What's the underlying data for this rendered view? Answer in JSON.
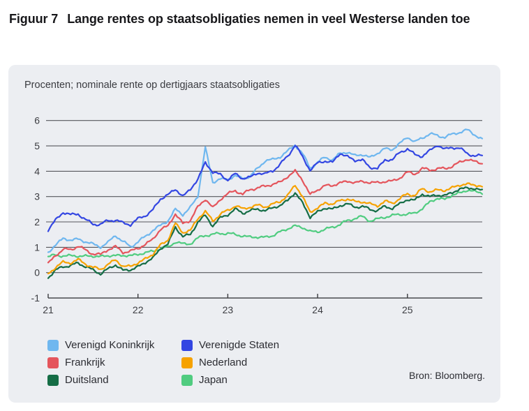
{
  "header": {
    "figure_label": "Figuur 7",
    "title": "Lange rentes op staatsobligaties nemen in veel Westerse landen toe"
  },
  "panel": {
    "subtitle": "Procenten; nominale rente op dertigjaars staatsobligaties",
    "source": "Bron: Bloomberg."
  },
  "chart_data": {
    "type": "line",
    "title": "Lange rentes op staatsobligaties nemen in veel Westerse landen toe",
    "subtitle": "Procenten; nominale rente op dertigjaars staatsobligaties",
    "ylabel": "Procenten",
    "x_unit": "jaar (maanddata jan 2021 t/m nov 2025)",
    "x_start": 21.0,
    "x_step": 0.08333,
    "xlim": [
      21,
      25.92
    ],
    "ylim": [
      -1,
      6
    ],
    "x_tick_values": [
      21,
      22,
      23,
      24,
      25
    ],
    "x_tick_labels": [
      "21",
      "22",
      "23",
      "24",
      "25"
    ],
    "y_tick_values": [
      6,
      5,
      4,
      3,
      2,
      1,
      0,
      -1
    ],
    "y_tick_labels": [
      "6",
      "5",
      "4",
      "3",
      "2",
      "1",
      "0",
      "-1"
    ],
    "y_gridline_values": [
      0,
      1,
      2,
      3,
      4,
      5,
      6
    ],
    "grid": "horizontal",
    "legend_position": "bottom-left",
    "background_color": "#eceef2",
    "gridline_color": "#56575c",
    "draw_order": [
      5,
      4,
      3,
      2,
      0,
      1
    ],
    "series": [
      {
        "name": "Verenigd Koninkrijk",
        "color": "#6fb7ef",
        "values": [
          0.78,
          1.1,
          1.35,
          1.28,
          1.32,
          1.22,
          1.12,
          1.02,
          1.18,
          1.48,
          1.22,
          1.02,
          1.22,
          1.42,
          1.68,
          1.85,
          2.05,
          2.5,
          2.28,
          2.58,
          3.0,
          4.95,
          3.55,
          3.7,
          3.68,
          3.82,
          3.72,
          3.8,
          4.12,
          4.42,
          4.45,
          4.58,
          4.78,
          5.05,
          4.68,
          4.12,
          4.35,
          4.55,
          4.45,
          4.7,
          4.75,
          4.62,
          4.65,
          4.55,
          4.7,
          4.9,
          4.85,
          5.1,
          5.35,
          5.15,
          5.32,
          5.48,
          5.4,
          5.35,
          5.45,
          5.55,
          5.62,
          5.45,
          5.25
        ]
      },
      {
        "name": "Verenigde Staten",
        "color": "#3346e2",
        "values": [
          1.68,
          2.08,
          2.38,
          2.28,
          2.32,
          2.08,
          1.92,
          1.9,
          2.05,
          2.08,
          1.95,
          1.9,
          2.12,
          2.25,
          2.48,
          2.9,
          3.08,
          3.28,
          3.02,
          3.28,
          3.68,
          4.35,
          3.95,
          3.88,
          3.65,
          3.9,
          3.72,
          3.75,
          3.95,
          3.88,
          4.02,
          4.28,
          4.58,
          5.05,
          4.55,
          4.05,
          4.32,
          4.4,
          4.35,
          4.7,
          4.58,
          4.42,
          4.45,
          4.15,
          4.1,
          4.45,
          4.45,
          4.75,
          4.88,
          4.65,
          4.6,
          4.8,
          5.05,
          4.85,
          4.95,
          4.9,
          4.7,
          4.6,
          4.62
        ]
      },
      {
        "name": "Frankrijk",
        "color": "#e4555c",
        "values": [
          0.35,
          0.68,
          0.92,
          0.9,
          1.05,
          0.88,
          0.75,
          0.7,
          0.92,
          1.02,
          0.8,
          0.85,
          0.95,
          1.12,
          1.32,
          1.7,
          1.85,
          2.3,
          1.95,
          2.05,
          2.6,
          2.9,
          2.55,
          2.9,
          3.1,
          3.25,
          3.08,
          3.28,
          3.35,
          3.4,
          3.5,
          3.55,
          3.8,
          4.0,
          3.65,
          3.08,
          3.25,
          3.45,
          3.42,
          3.55,
          3.6,
          3.55,
          3.6,
          3.55,
          3.55,
          3.6,
          3.6,
          3.75,
          3.95,
          3.9,
          4.1,
          4.05,
          4.1,
          4.1,
          4.2,
          4.35,
          4.48,
          4.38,
          4.3
        ]
      },
      {
        "name": "Nederland",
        "color": "#f6a200",
        "values": [
          -0.05,
          0.22,
          0.4,
          0.4,
          0.5,
          0.35,
          0.2,
          0.13,
          0.33,
          0.5,
          0.25,
          0.25,
          0.38,
          0.55,
          0.72,
          1.1,
          1.28,
          1.95,
          1.58,
          1.65,
          2.15,
          2.4,
          2.05,
          2.3,
          2.45,
          2.65,
          2.5,
          2.6,
          2.65,
          2.6,
          2.7,
          2.8,
          3.05,
          3.45,
          3.0,
          2.38,
          2.55,
          2.75,
          2.7,
          2.85,
          2.9,
          2.8,
          2.8,
          2.7,
          2.65,
          2.8,
          2.75,
          2.92,
          3.1,
          3.05,
          3.3,
          3.2,
          3.25,
          3.25,
          3.35,
          3.45,
          3.5,
          3.45,
          3.4
        ]
      },
      {
        "name": "Duitsland",
        "color": "#156d46",
        "values": [
          -0.18,
          0.08,
          0.25,
          0.27,
          0.38,
          0.24,
          0.1,
          -0.05,
          0.15,
          0.3,
          0.1,
          0.1,
          0.24,
          0.4,
          0.58,
          0.95,
          1.12,
          1.8,
          1.42,
          1.5,
          2.0,
          2.25,
          1.85,
          2.15,
          2.3,
          2.5,
          2.35,
          2.45,
          2.5,
          2.45,
          2.55,
          2.65,
          2.85,
          3.15,
          2.75,
          2.18,
          2.4,
          2.55,
          2.5,
          2.65,
          2.7,
          2.6,
          2.6,
          2.5,
          2.45,
          2.6,
          2.55,
          2.7,
          2.9,
          2.85,
          3.1,
          3.0,
          3.05,
          3.05,
          3.15,
          3.3,
          3.35,
          3.3,
          3.25
        ]
      },
      {
        "name": "Japan",
        "color": "#50cc80",
        "values": [
          0.64,
          0.68,
          0.67,
          0.66,
          0.66,
          0.65,
          0.65,
          0.64,
          0.66,
          0.68,
          0.67,
          0.67,
          0.72,
          0.78,
          0.85,
          0.95,
          1.0,
          1.22,
          1.12,
          1.15,
          1.35,
          1.48,
          1.5,
          1.55,
          1.55,
          1.5,
          1.45,
          1.4,
          1.4,
          1.4,
          1.45,
          1.62,
          1.72,
          1.85,
          1.78,
          1.62,
          1.62,
          1.7,
          1.8,
          1.9,
          2.05,
          2.15,
          2.2,
          2.05,
          2.1,
          2.2,
          2.25,
          2.3,
          2.3,
          2.35,
          2.52,
          2.8,
          2.92,
          2.9,
          3.05,
          3.15,
          3.25,
          3.2,
          3.15
        ]
      }
    ],
    "source": "Bron: Bloomberg."
  }
}
